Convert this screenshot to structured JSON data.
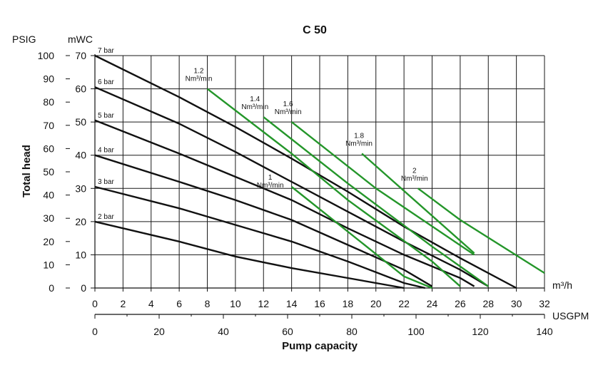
{
  "chart_data": {
    "type": "line",
    "title": "C 50",
    "xlabel": "Pump capacity",
    "ylabel": "Total head",
    "x_unit_primary": "m³/h",
    "x_unit_secondary": "USGPM",
    "y_unit_left": "PSIG",
    "y_unit_right": "mWC",
    "xlim": [
      0,
      32
    ],
    "ylim": [
      0,
      70
    ],
    "x_ticks": [
      "0",
      "2",
      "4",
      "6",
      "8",
      "10",
      "12",
      "14",
      "16",
      "18",
      "20",
      "22",
      "24",
      "26",
      "28",
      "30",
      "32"
    ],
    "usgpm_ticks": [
      "0",
      "20",
      "40",
      "60",
      "80",
      "100",
      "120",
      "140"
    ],
    "psig_ticks": [
      "0",
      "10",
      "20",
      "30",
      "40",
      "50",
      "60",
      "70",
      "80",
      "90",
      "100"
    ],
    "mwc_ticks": [
      "0",
      "10",
      "20",
      "30",
      "40",
      "50",
      "60",
      "70"
    ],
    "pressure_series": [
      {
        "name": "7 bar",
        "points": [
          [
            0,
            70
          ],
          [
            6,
            57.5
          ],
          [
            10,
            48.5
          ],
          [
            14,
            39
          ],
          [
            18,
            29
          ],
          [
            22,
            18.5
          ],
          [
            26,
            9
          ],
          [
            30,
            0
          ]
        ]
      },
      {
        "name": "6 bar",
        "points": [
          [
            0,
            60.5
          ],
          [
            6,
            49.5
          ],
          [
            10,
            41
          ],
          [
            14,
            32
          ],
          [
            18,
            23
          ],
          [
            22,
            14
          ],
          [
            26,
            5.5
          ],
          [
            28,
            0.5
          ]
        ]
      },
      {
        "name": "5 bar",
        "points": [
          [
            0,
            50.5
          ],
          [
            6,
            40.5
          ],
          [
            10,
            33.5
          ],
          [
            14,
            26.5
          ],
          [
            18,
            18
          ],
          [
            22,
            10
          ],
          [
            26,
            3
          ],
          [
            27,
            0.5
          ]
        ]
      },
      {
        "name": "4 bar",
        "points": [
          [
            0,
            40
          ],
          [
            6,
            32
          ],
          [
            10,
            26.5
          ],
          [
            14,
            20.5
          ],
          [
            18,
            13
          ],
          [
            22,
            5.5
          ],
          [
            24,
            0.5
          ]
        ]
      },
      {
        "name": "3 bar",
        "points": [
          [
            0,
            30.5
          ],
          [
            6,
            24
          ],
          [
            10,
            19
          ],
          [
            14,
            14
          ],
          [
            18,
            8
          ],
          [
            22,
            1.5
          ],
          [
            23.5,
            0
          ]
        ]
      },
      {
        "name": "2 bar",
        "points": [
          [
            0,
            20
          ],
          [
            6,
            14
          ],
          [
            10,
            9.5
          ],
          [
            14,
            6
          ],
          [
            18,
            3
          ],
          [
            22,
            0
          ]
        ]
      }
    ],
    "air_consumption_series": [
      {
        "name": "1 Nm³/min",
        "label_top": "1",
        "label_bottom": "Nm³/min",
        "points": [
          [
            14,
            30.5
          ],
          [
            22,
            3.5
          ],
          [
            24,
            0
          ]
        ]
      },
      {
        "name": "1.2 Nm³/min",
        "label_top": "1.2",
        "label_bottom": "Nm³/min",
        "points": [
          [
            8,
            60
          ],
          [
            14,
            40.5
          ],
          [
            18,
            26.5
          ],
          [
            24,
            8
          ],
          [
            26,
            0.5
          ]
        ]
      },
      {
        "name": "1.4 Nm³/min",
        "label_top": "1.4",
        "label_bottom": "Nm³/min",
        "points": [
          [
            12,
            51.5
          ],
          [
            18,
            31.5
          ],
          [
            24,
            12.5
          ],
          [
            28,
            0.5
          ]
        ]
      },
      {
        "name": "1.6 Nm³/min",
        "label_top": "1.6",
        "label_bottom": "Nm³/min",
        "points": [
          [
            14,
            50
          ],
          [
            20,
            30
          ],
          [
            27,
            10
          ]
        ]
      },
      {
        "name": "1.8 Nm³/min",
        "label_top": "1.8",
        "label_bottom": "Nm³/min",
        "points": [
          [
            19,
            40.5
          ],
          [
            27,
            10.5
          ]
        ]
      },
      {
        "name": "2 Nm³/min",
        "label_top": "2",
        "label_bottom": "Nm³/min",
        "points": [
          [
            23,
            30
          ],
          [
            26,
            20.5
          ],
          [
            32,
            4.5
          ]
        ]
      }
    ]
  }
}
